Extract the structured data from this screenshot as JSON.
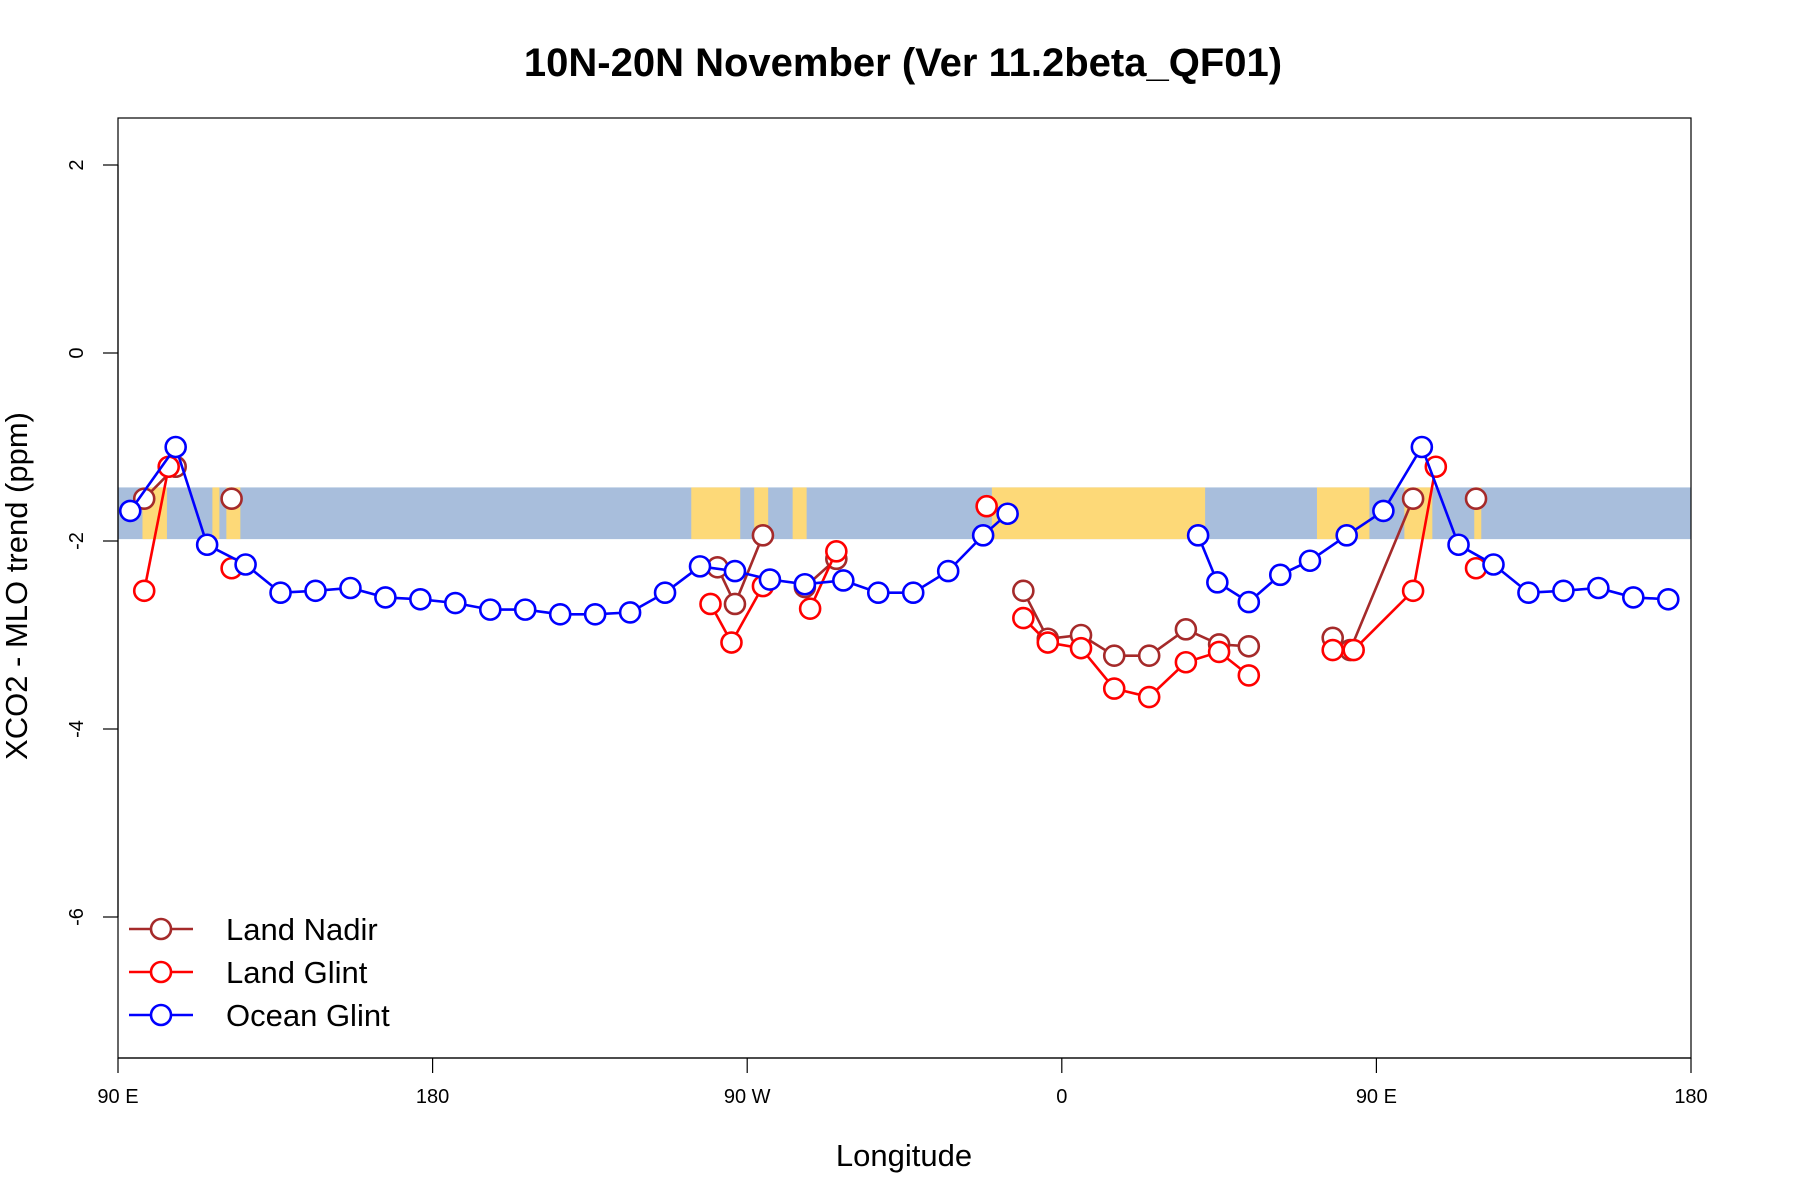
{
  "chart_data": {
    "type": "line",
    "title": "10N-20N November (Ver 11.2beta_QF01)",
    "xlabel": "Longitude",
    "ylabel": "XCO2 - MLO trend (ppm)",
    "xlim": [
      90,
      540
    ],
    "ylim": [
      -7.5,
      2.5
    ],
    "x_unit_note": "",
    "x_ticks": [
      {
        "value": 90,
        "label": "90 E"
      },
      {
        "value": 180,
        "label": "180"
      },
      {
        "value": 270,
        "label": "90 W"
      },
      {
        "value": 360,
        "label": "0"
      },
      {
        "value": 450,
        "label": "90 E"
      },
      {
        "value": 540,
        "label": "180"
      }
    ],
    "y_ticks": [
      {
        "value": 2,
        "label": "2"
      },
      {
        "value": 0,
        "label": "0"
      },
      {
        "value": -2,
        "label": "-2"
      },
      {
        "value": -4,
        "label": "-4"
      },
      {
        "value": -6,
        "label": "-6"
      }
    ],
    "grid": false,
    "legend_position": "bottom-left",
    "background_map": {
      "lat_band": "10N-20N",
      "y_range": [
        -1.98,
        -1.43
      ],
      "ocean_color": "#a8bedc",
      "land_color": "#fdd978"
    },
    "series": [
      {
        "name": "Land Nadir",
        "color": "#a52a2a",
        "segments": [
          {
            "x": [
              97.5,
              106.5
            ],
            "y": [
              -1.55,
              -1.21
            ]
          },
          {
            "x": [
              122.5
            ],
            "y": [
              -1.55
            ]
          },
          {
            "x": [
              261.5,
              266.5,
              274.5
            ],
            "y": [
              -2.28,
              -2.67,
              -1.94
            ]
          },
          {
            "x": [
              286.5,
              295.5
            ],
            "y": [
              -2.49,
              -2.19
            ]
          },
          {
            "x": [
              349,
              356,
              365.5,
              375,
              385,
              395.5,
              405,
              413.5
            ],
            "y": [
              -2.53,
              -3.04,
              -3.0,
              -3.22,
              -3.22,
              -2.94,
              -3.1,
              -3.12
            ]
          },
          {
            "x": [
              437.5,
              442.5,
              460.5
            ],
            "y": [
              -3.03,
              -3.16,
              -1.55
            ]
          },
          {
            "x": [
              478.5
            ],
            "y": [
              -1.55
            ]
          }
        ]
      },
      {
        "name": "Land Glint",
        "color": "#ff0000",
        "segments": [
          {
            "x": [
              97.5,
              104.5
            ],
            "y": [
              -2.53,
              -1.21
            ]
          },
          {
            "x": [
              122.5
            ],
            "y": [
              -2.29
            ]
          },
          {
            "x": [
              259.5,
              265.5,
              274.5
            ],
            "y": [
              -2.67,
              -3.08,
              -2.48
            ]
          },
          {
            "x": [
              288,
              295.5
            ],
            "y": [
              -2.72,
              -2.11
            ]
          },
          {
            "x": [
              338.5
            ],
            "y": [
              -1.63
            ]
          },
          {
            "x": [
              349,
              356,
              365.5,
              375,
              385,
              395.5,
              405,
              413.5
            ],
            "y": [
              -2.82,
              -3.08,
              -3.14,
              -3.57,
              -3.66,
              -3.29,
              -3.18,
              -3.43
            ]
          },
          {
            "x": [
              437.5,
              443.5,
              460.5,
              467
            ],
            "y": [
              -3.16,
              -3.16,
              -2.53,
              -1.21
            ]
          },
          {
            "x": [
              478.5
            ],
            "y": [
              -2.29
            ]
          }
        ]
      },
      {
        "name": "Ocean Glint",
        "color": "#0000ff",
        "segments": [
          {
            "x": [
              93.5,
              106.5,
              115.5,
              126.5,
              136.5,
              146.5,
              156.5,
              166.5,
              176.5,
              186.5,
              196.5,
              206.5,
              216.5,
              226.5,
              236.5,
              246.5,
              256.5,
              266.5,
              276.5,
              286.5,
              297.5,
              307.5,
              317.5,
              327.5,
              337.5,
              344.5
            ],
            "y": [
              -1.68,
              -1.0,
              -2.04,
              -2.25,
              -2.55,
              -2.53,
              -2.5,
              -2.6,
              -2.62,
              -2.66,
              -2.73,
              -2.73,
              -2.78,
              -2.78,
              -2.76,
              -2.55,
              -2.27,
              -2.32,
              -2.41,
              -2.46,
              -2.42,
              -2.55,
              -2.55,
              -2.32,
              -1.94,
              -1.71
            ]
          },
          {
            "x": [
              399,
              404.5,
              413.5,
              422.5,
              431,
              441.5,
              452,
              463,
              473.5,
              483.5,
              493.5,
              503.5,
              513.5,
              523.5,
              533.5
            ],
            "y": [
              -1.94,
              -2.44,
              -2.65,
              -2.36,
              -2.21,
              -1.94,
              -1.68,
              -1.0,
              -2.04,
              -2.25,
              -2.55,
              -2.53,
              -2.5,
              -2.6,
              -2.62
            ]
          }
        ]
      }
    ]
  }
}
